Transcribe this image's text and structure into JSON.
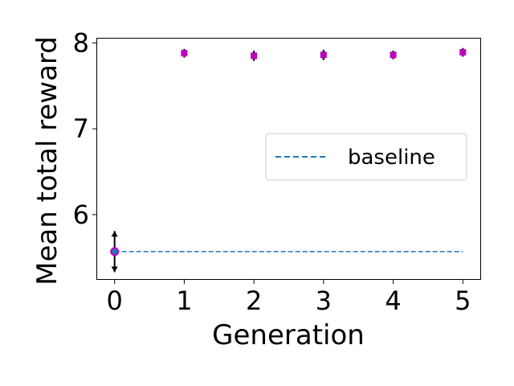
{
  "chart_data": {
    "type": "scatter",
    "title": "",
    "xlabel": "Generation",
    "ylabel": "Mean total reward",
    "xlim": [
      -0.25,
      5.25
    ],
    "ylim": [
      5.25,
      8.05
    ],
    "xticks": [
      0,
      1,
      2,
      3,
      4,
      5
    ],
    "xtick_labels": [
      "0",
      "1",
      "2",
      "3",
      "4",
      "5"
    ],
    "yticks": [
      6,
      7,
      8
    ],
    "ytick_labels": [
      "6",
      "7",
      "8"
    ],
    "grid": false,
    "legend_position": "center-right",
    "series": [
      {
        "kind": "scatter-errorbar",
        "marker_color": "#bf00bf",
        "point_color": "#1f77b4",
        "errorbar_color": "#000000",
        "x": [
          0,
          1,
          2,
          3,
          4,
          5
        ],
        "y": [
          5.57,
          7.88,
          7.85,
          7.86,
          7.86,
          7.89
        ],
        "err_low": [
          0.24,
          0.05,
          0.06,
          0.06,
          0.05,
          0.05
        ],
        "err_high": [
          0.24,
          0.05,
          0.06,
          0.06,
          0.05,
          0.05
        ]
      },
      {
        "kind": "hline",
        "name": "baseline",
        "color": "#1f77b4",
        "style": "dashed",
        "y": 5.57,
        "x_from": 0,
        "x_to": 5
      }
    ]
  }
}
